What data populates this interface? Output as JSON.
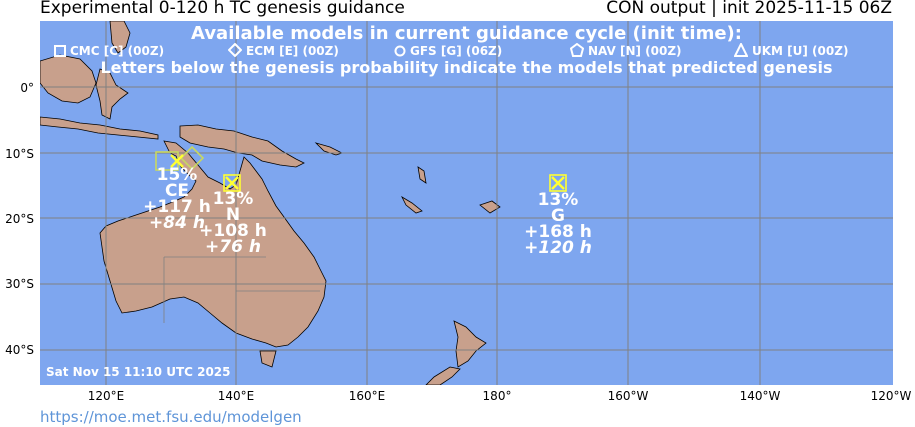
{
  "header": {
    "title_left": "Experimental 0-120 h TC genesis guidance",
    "title_right": "CON output | init 2025-11-15 06Z"
  },
  "legend": {
    "title": "Available models in current guidance cycle (init time):",
    "items": [
      {
        "label": "CMC [C] (00Z)",
        "marker": "square"
      },
      {
        "label": "ECM [E] (00Z)",
        "marker": "diamond"
      },
      {
        "label": "GFS [G] (06Z)",
        "marker": "circle"
      },
      {
        "label": "NAV [N] (00Z)",
        "marker": "pentagon"
      },
      {
        "label": "UKM [U] (00Z)",
        "marker": "triangle"
      }
    ],
    "note": "Letters below the genesis probability indicate the models that predicted genesis"
  },
  "axes": {
    "lat_labels": [
      "0°",
      "10°S",
      "20°S",
      "30°S",
      "40°S"
    ],
    "lon_labels": [
      "120°E",
      "140°E",
      "160°E",
      "180°",
      "160°W",
      "140°W",
      "120°W"
    ]
  },
  "storms": [
    {
      "probability": "15%",
      "models": "CE",
      "lead_first": "+117 h",
      "lead_second": "+84 h"
    },
    {
      "probability": "13%",
      "models": "N",
      "lead_first": "+108 h",
      "lead_second": "+76 h"
    },
    {
      "probability": "13%",
      "models": "G",
      "lead_first": "+168 h",
      "lead_second": "+120 h"
    }
  ],
  "timestamp": "Sat Nov 15 11:10 UTC 2025",
  "source_url": "https://moe.met.fsu.edu/modelgen",
  "colors": {
    "ocean": "#7ea6ef",
    "land": "#c8a08c",
    "grid": "#808080",
    "marker": "#ffff33",
    "legend_text": "#ffffff",
    "url": "#5f95d8"
  }
}
